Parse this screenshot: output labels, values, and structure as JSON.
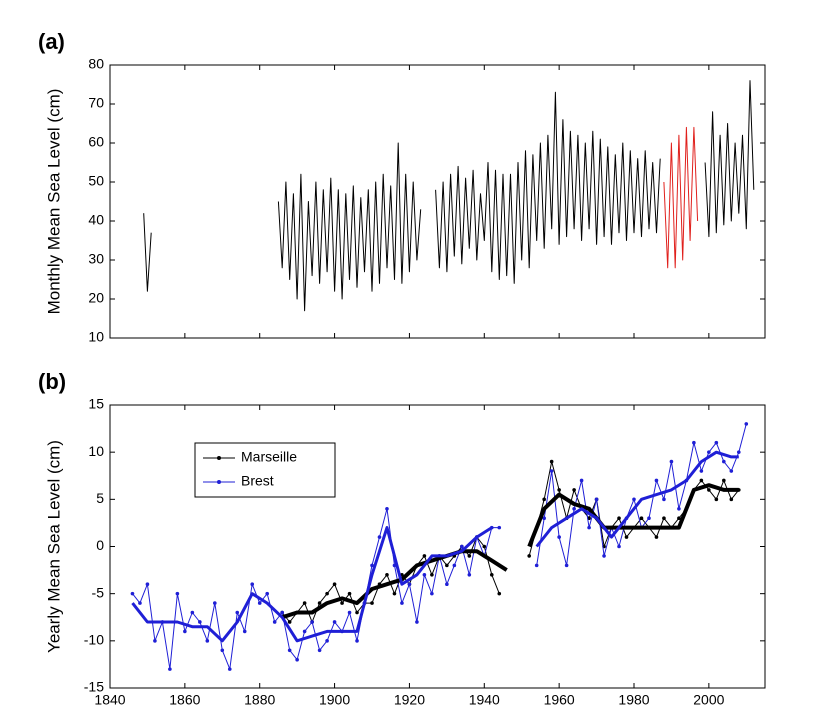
{
  "chart_data": [
    {
      "type": "line",
      "panel_label": "(a)",
      "ylabel": "Monthly Mean Sea Level (cm)",
      "xlim": [
        1840,
        2015
      ],
      "xticks": [
        1840,
        1860,
        1880,
        1900,
        1920,
        1940,
        1960,
        1980,
        2000
      ],
      "xtick_labels": false,
      "ylim": [
        10,
        80
      ],
      "yticks": [
        10,
        20,
        30,
        40,
        50,
        60,
        70,
        80
      ],
      "grid": false,
      "series": [
        {
          "color": "#000000",
          "line_width": 1,
          "x": [
            1849,
            1850,
            1851,
            1852,
            1885,
            1886,
            1887,
            1888,
            1889,
            1890,
            1891,
            1892,
            1893,
            1894,
            1895,
            1896,
            1897,
            1898,
            1899,
            1900,
            1901,
            1902,
            1903,
            1904,
            1905,
            1906,
            1907,
            1908,
            1909,
            1910,
            1911,
            1912,
            1913,
            1914,
            1915,
            1916,
            1917,
            1918,
            1919,
            1920,
            1921,
            1922,
            1923,
            1924,
            1927,
            1928,
            1929,
            1930,
            1931,
            1932,
            1933,
            1934,
            1935,
            1936,
            1937,
            1938,
            1939,
            1940,
            1941,
            1942,
            1943,
            1944,
            1945,
            1946,
            1947,
            1948,
            1949,
            1950,
            1951,
            1952,
            1953,
            1954,
            1955,
            1956,
            1957,
            1958,
            1959,
            1960,
            1961,
            1962,
            1963,
            1964,
            1965,
            1966,
            1967,
            1968,
            1969,
            1970,
            1971,
            1972,
            1973,
            1974,
            1975,
            1976,
            1977,
            1978,
            1979,
            1980,
            1981,
            1982,
            1983,
            1984,
            1985,
            1986,
            1987,
            1988,
            1999,
            2000,
            2001,
            2002,
            2003,
            2004,
            2005,
            2006,
            2007,
            2008,
            2009,
            2010,
            2011,
            2012
          ],
          "values": [
            42,
            22,
            37,
            null,
            45,
            28,
            50,
            25,
            47,
            20,
            52,
            17,
            45,
            26,
            50,
            24,
            48,
            27,
            51,
            22,
            48,
            20,
            47,
            25,
            49,
            23,
            46,
            27,
            48,
            22,
            50,
            24,
            52,
            28,
            49,
            25,
            60,
            24,
            52,
            27,
            50,
            30,
            43,
            null,
            48,
            28,
            50,
            27,
            52,
            31,
            54,
            29,
            51,
            33,
            53,
            30,
            47,
            35,
            55,
            27,
            53,
            25,
            52,
            26,
            52,
            24,
            55,
            30,
            58,
            28,
            57,
            35,
            60,
            33,
            62,
            38,
            73,
            34,
            66,
            36,
            63,
            38,
            62,
            35,
            60,
            38,
            63,
            34,
            61,
            36,
            59,
            34,
            57,
            37,
            60,
            35,
            58,
            37,
            56,
            36,
            58,
            38,
            55,
            37,
            56,
            null,
            55,
            36,
            68,
            37,
            62,
            39,
            65,
            40,
            60,
            42,
            62,
            38,
            76,
            48
          ]
        },
        {
          "color": "#e0201c",
          "line_width": 1,
          "x": [
            1988,
            1989,
            1990,
            1991,
            1992,
            1993,
            1994,
            1995,
            1996,
            1997
          ],
          "values": [
            50,
            28,
            60,
            28,
            62,
            30,
            64,
            35,
            64,
            40
          ]
        }
      ]
    },
    {
      "type": "line",
      "panel_label": "(b)",
      "ylabel": "Yearly Mean Sea Level (cm)",
      "xlim": [
        1840,
        2015
      ],
      "xticks": [
        1840,
        1860,
        1880,
        1900,
        1920,
        1940,
        1960,
        1980,
        2000
      ],
      "xtick_labels": true,
      "ylim": [
        -15,
        15
      ],
      "yticks": [
        -15,
        -10,
        -5,
        0,
        5,
        10,
        15
      ],
      "grid": false,
      "legend": "upper left",
      "series": [
        {
          "name": "Marseille",
          "color": "#000000",
          "line_width": 1,
          "markers": true,
          "x": [
            1886,
            1888,
            1890,
            1892,
            1894,
            1896,
            1898,
            1900,
            1902,
            1904,
            1906,
            1908,
            1910,
            1912,
            1914,
            1916,
            1918,
            1920,
            1922,
            1924,
            1926,
            1928,
            1930,
            1932,
            1934,
            1936,
            1938,
            1940,
            1942,
            1944,
            1948,
            1952,
            1954,
            1956,
            1958,
            1960,
            1962,
            1964,
            1966,
            1968,
            1970,
            1972,
            1974,
            1976,
            1978,
            1980,
            1982,
            1984,
            1986,
            1988,
            1990,
            1992,
            1994,
            1996,
            1998,
            2000,
            2002,
            2004,
            2006,
            2008
          ],
          "values": [
            -7,
            -8,
            -7,
            -6,
            -8,
            -6,
            -5,
            -4,
            -6,
            -5,
            -7,
            -6,
            -6,
            -4,
            -3,
            -5,
            -3,
            -4,
            -2,
            -1,
            -3,
            -1,
            -2,
            -1,
            0,
            -1,
            1,
            0,
            -3,
            -5,
            null,
            -1,
            2,
            5,
            9,
            6,
            3,
            6,
            4,
            3,
            5,
            0,
            2,
            3,
            1,
            2,
            3,
            2,
            1,
            3,
            2,
            3,
            4,
            6,
            7,
            6,
            5,
            7,
            5,
            6
          ]
        },
        {
          "name": "Brest",
          "color": "#1f1fd6",
          "line_width": 1,
          "markers": true,
          "x": [
            1846,
            1848,
            1850,
            1852,
            1854,
            1856,
            1858,
            1860,
            1862,
            1864,
            1866,
            1868,
            1870,
            1872,
            1874,
            1876,
            1878,
            1880,
            1882,
            1884,
            1886,
            1888,
            1890,
            1892,
            1894,
            1896,
            1898,
            1900,
            1902,
            1904,
            1906,
            1908,
            1910,
            1912,
            1914,
            1916,
            1918,
            1920,
            1922,
            1924,
            1926,
            1928,
            1930,
            1932,
            1934,
            1936,
            1938,
            1940,
            1942,
            1944,
            1948,
            1954,
            1956,
            1958,
            1960,
            1962,
            1964,
            1966,
            1968,
            1970,
            1972,
            1974,
            1976,
            1978,
            1980,
            1982,
            1984,
            1986,
            1988,
            1990,
            1992,
            1994,
            1996,
            1998,
            2000,
            2002,
            2004,
            2006,
            2008,
            2010
          ],
          "values": [
            -5,
            -6,
            -4,
            -10,
            -8,
            -13,
            -5,
            -9,
            -7,
            -8,
            -10,
            -6,
            -11,
            -13,
            -7,
            -9,
            -4,
            -6,
            -5,
            -8,
            -7,
            -11,
            -12,
            -9,
            -8,
            -11,
            -10,
            -8,
            -9,
            -7,
            -10,
            -6,
            -2,
            1,
            4,
            -2,
            -6,
            -4,
            -8,
            -3,
            -5,
            -1,
            -4,
            -2,
            0,
            -3,
            1,
            -1,
            2,
            2,
            null,
            -2,
            3,
            8,
            1,
            -2,
            4,
            7,
            2,
            5,
            -1,
            2,
            0,
            3,
            5,
            2,
            3,
            7,
            5,
            9,
            4,
            7,
            11,
            8,
            10,
            11,
            9,
            8,
            10,
            13
          ]
        },
        {
          "color": "#000000",
          "line_width": 4,
          "x": [
            1886,
            1890,
            1894,
            1898,
            1902,
            1906,
            1910,
            1914,
            1918,
            1922,
            1926,
            1930,
            1934,
            1938,
            1942,
            1946,
            1949,
            1952,
            1956,
            1960,
            1964,
            1968,
            1972,
            1976,
            1980,
            1984,
            1988,
            1992,
            1994,
            1996,
            2000,
            2004,
            2008
          ],
          "values": [
            -7.5,
            -7,
            -7,
            -6,
            -5.5,
            -6,
            -4.5,
            -4,
            -3.5,
            -2,
            -1.5,
            -1,
            -0.5,
            -0.5,
            -1.5,
            -2.5,
            null,
            0,
            4,
            5.5,
            4.5,
            4,
            2,
            2,
            2,
            2,
            2,
            2,
            4,
            6,
            6.5,
            6,
            6
          ]
        },
        {
          "color": "#1f1fd6",
          "line_width": 3,
          "x": [
            1846,
            1850,
            1854,
            1858,
            1862,
            1866,
            1870,
            1874,
            1878,
            1882,
            1886,
            1890,
            1894,
            1898,
            1902,
            1906,
            1910,
            1914,
            1918,
            1922,
            1926,
            1930,
            1934,
            1938,
            1942,
            1948,
            1954,
            1958,
            1962,
            1966,
            1970,
            1974,
            1978,
            1982,
            1986,
            1990,
            1994,
            1998,
            2002,
            2006,
            2008
          ],
          "values": [
            -6,
            -8,
            -8,
            -8,
            -8.5,
            -8.5,
            -10,
            -8,
            -5,
            -6,
            -7.5,
            -10,
            -9.5,
            -9,
            -9,
            -9,
            -3,
            2,
            -4,
            -3,
            -1,
            -1,
            -0.5,
            1,
            2,
            null,
            0,
            2,
            3,
            4,
            3,
            1,
            3,
            5,
            5.5,
            6,
            7,
            9,
            10,
            9.5,
            9.5
          ]
        }
      ]
    }
  ]
}
